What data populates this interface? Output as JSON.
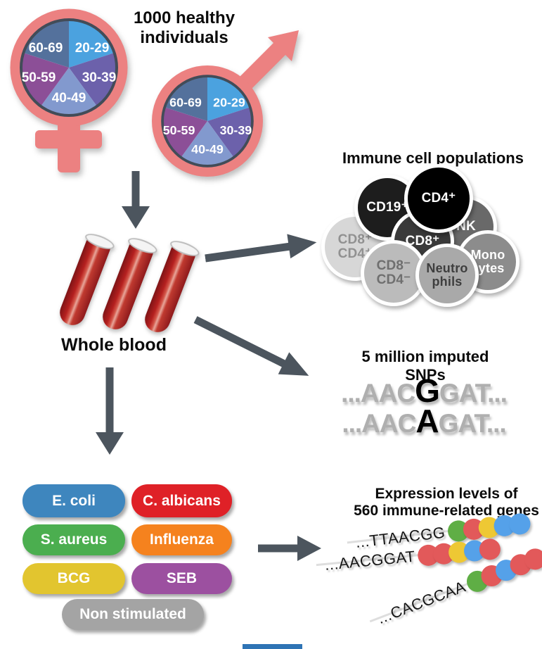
{
  "cohort": {
    "title": "1000 healthy individuals"
  },
  "demographics": {
    "age_groups": [
      "20-29",
      "30-39",
      "40-49",
      "50-59",
      "60-69"
    ],
    "slice_colors": [
      "#4BA2DF",
      "#6C61AB",
      "#8299CE",
      "#8C4F97",
      "#54719C"
    ],
    "symbol_color": "#EC8181"
  },
  "blood": {
    "label": "Whole blood"
  },
  "immune_cells": {
    "title": "Immune cell populations",
    "cells": [
      {
        "id": "cd8pos-cd4pos",
        "line1": "CD8⁺",
        "line2": "CD4⁺",
        "bg": "#D7D7D7",
        "fg": "#919191"
      },
      {
        "id": "cd19pos",
        "line1": "CD19⁺",
        "line2": "",
        "bg": "#1D1D1D",
        "fg": "#FFFFFF"
      },
      {
        "id": "nk",
        "line1": "NK",
        "line2": "",
        "bg": "#696969",
        "fg": "#FFFFFF"
      },
      {
        "id": "cd8pos",
        "line1": "CD8⁺",
        "line2": "",
        "bg": "#3A3A3A",
        "fg": "#FFFFFF"
      },
      {
        "id": "cd4pos",
        "line1": "CD4⁺",
        "line2": "",
        "bg": "#000000",
        "fg": "#FFFFFF"
      },
      {
        "id": "cd8neg-cd4neg",
        "line1": "CD8⁻",
        "line2": "CD4⁻",
        "bg": "#BBBBBB",
        "fg": "#6F6F6F"
      },
      {
        "id": "monocytes",
        "line1": "Mono",
        "line2": "cytes",
        "bg": "#8C8C8C",
        "fg": "#FFFFFF"
      },
      {
        "id": "neutrophils",
        "line1": "Neutro",
        "line2": "phils",
        "bg": "#A9A9A9",
        "fg": "#3E3E3E"
      }
    ]
  },
  "snps": {
    "title": "5 million imputed SNPs",
    "sequences": [
      {
        "prefix": "...AAC",
        "variant": "G",
        "suffix": "GAT..."
      },
      {
        "prefix": "...AAC",
        "variant": "A",
        "suffix": "GAT..."
      }
    ]
  },
  "stimuli": {
    "items": [
      {
        "label": "E. coli",
        "color": "#3E86BE"
      },
      {
        "label": "C. albicans",
        "color": "#DF2127"
      },
      {
        "label": "S. aureus",
        "color": "#4BAE4F"
      },
      {
        "label": "Influenza",
        "color": "#F5821E"
      },
      {
        "label": "BCG",
        "color": "#E2C52F"
      },
      {
        "label": "SEB",
        "color": "#9C50A0"
      },
      {
        "label": "Non stimulated",
        "color": "#A4A4A4"
      }
    ]
  },
  "expression": {
    "title_line1": "Expression levels of",
    "title_line2": "560 immune-related genes",
    "dot_colors": {
      "green": "#5FAE45",
      "red": "#E2595A",
      "yellow": "#EEC834",
      "blue": "#55A1E9"
    },
    "rows": [
      {
        "sequence": "...TTAACGG",
        "dots": [
          "green",
          "red",
          "yellow",
          "blue",
          "blue"
        ]
      },
      {
        "sequence": "...AACGGAT",
        "dots": [
          "red",
          "red",
          "yellow",
          "blue",
          "red"
        ]
      },
      {
        "sequence": "...CACGCAA",
        "dots": [
          "green",
          "red",
          "blue",
          "red",
          "red"
        ]
      }
    ]
  },
  "footer": {
    "bar_color": "#2E74B5"
  }
}
